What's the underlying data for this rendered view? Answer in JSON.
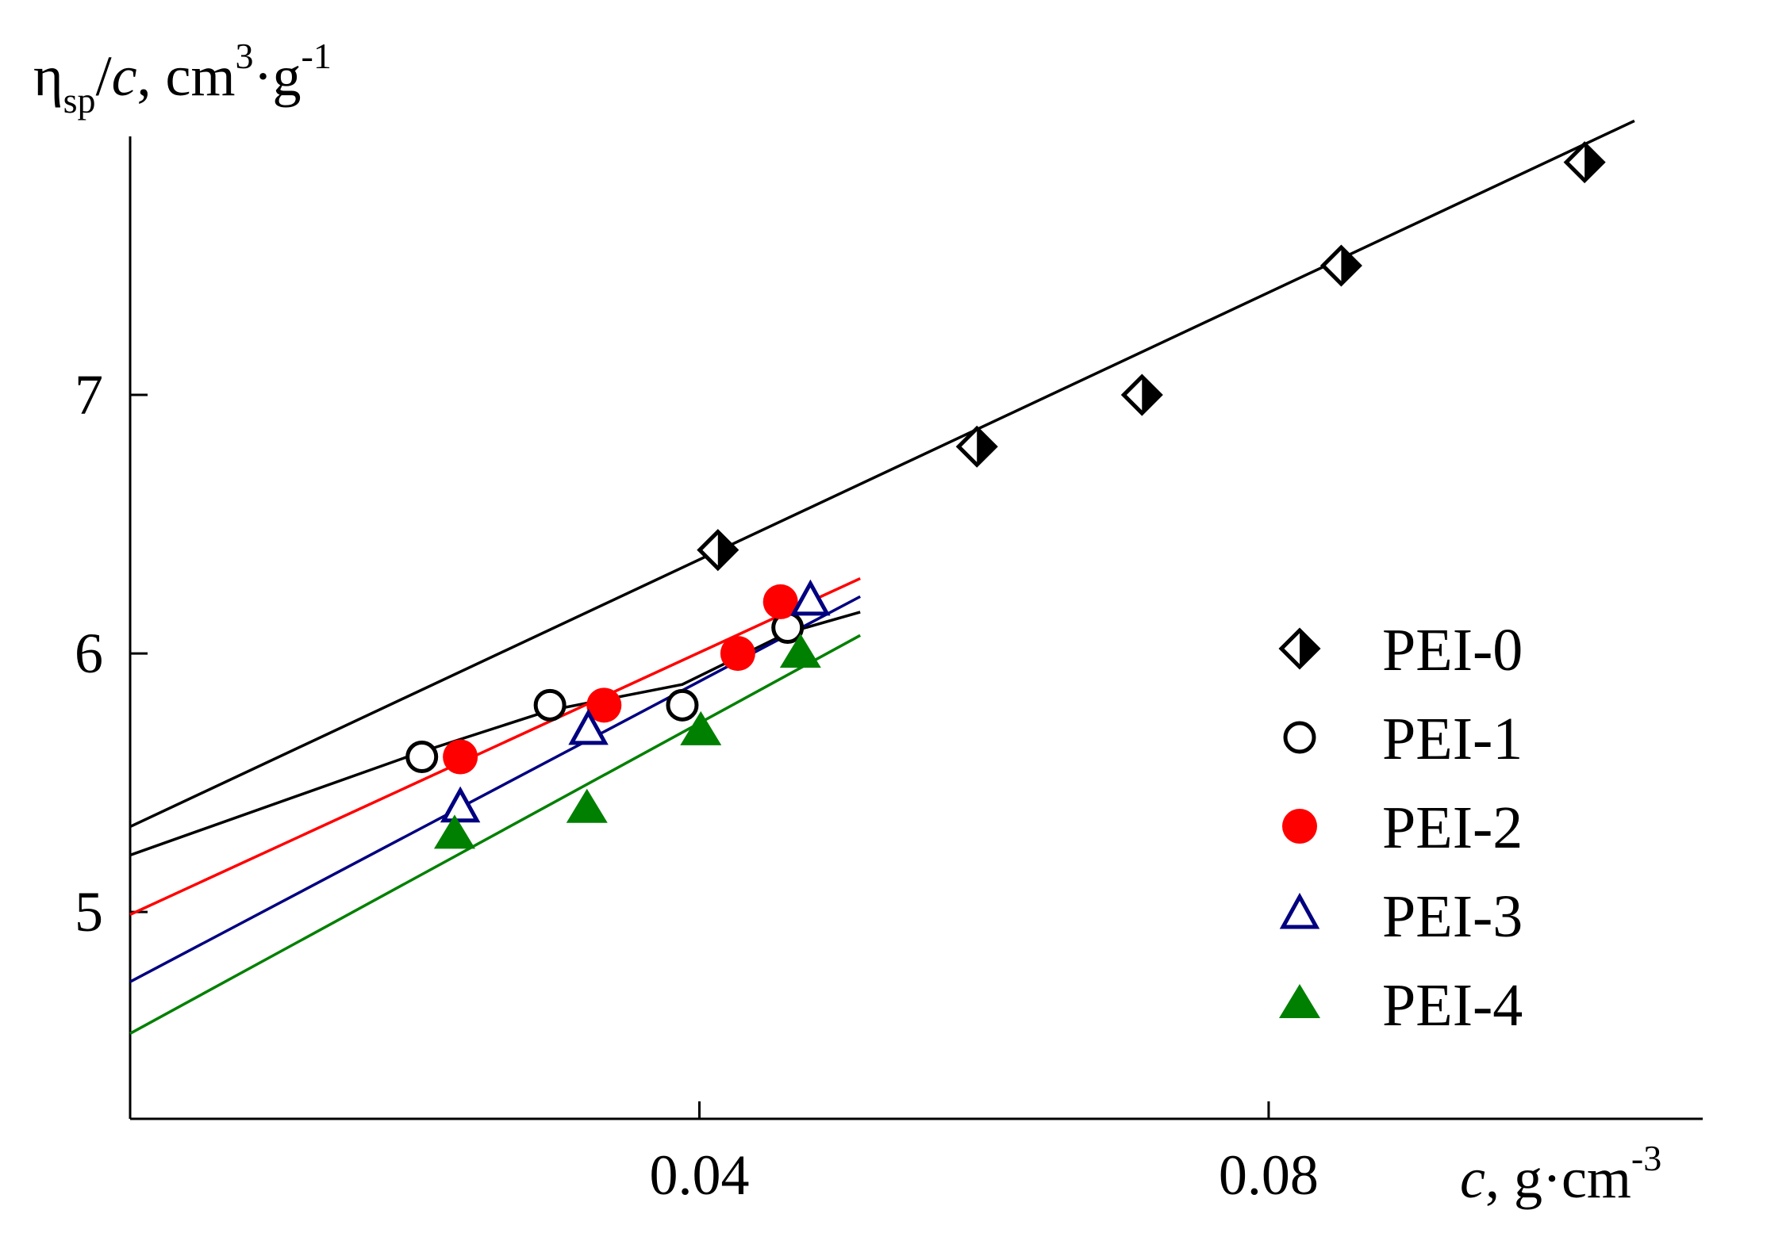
{
  "chart_data": {
    "type": "scatter",
    "title": "",
    "ylabel": {
      "main": "η",
      "sub": "sp",
      "rest": "/",
      "var": "c",
      "units": ", cm",
      "sup1": "3",
      "dot": "·g",
      "sup2": "-1"
    },
    "xlabel": {
      "var": "c",
      "units": ", g·cm",
      "sup": "-3"
    },
    "xlim": [
      0,
      0.1105
    ],
    "ylim": [
      4.2,
      8.0
    ],
    "x_ticks": [
      {
        "value": 0.04,
        "label": "0.04"
      },
      {
        "value": 0.08,
        "label": "0.08"
      }
    ],
    "y_ticks": [
      {
        "value": 5,
        "label": "5"
      },
      {
        "value": 6,
        "label": "6"
      },
      {
        "value": 7,
        "label": "7"
      }
    ],
    "legend_position": "right-center",
    "series": [
      {
        "name": "PEI-0",
        "marker": "half-diamond",
        "color": "#000000",
        "x": [
          0.0413,
          0.0595,
          0.0711,
          0.0851,
          0.1022
        ],
        "y": [
          6.4,
          6.8,
          7.0,
          7.5,
          7.9
        ],
        "fit": {
          "x": [
            0.0,
            0.1057
          ],
          "y": [
            5.33,
            8.06
          ]
        }
      },
      {
        "name": "PEI-1",
        "marker": "open-circle",
        "color": "#000000",
        "x": [
          0.0205,
          0.0295,
          0.0388,
          0.0462
        ],
        "y": [
          5.6,
          5.8,
          5.8,
          6.1
        ],
        "fit": {
          "x": [
            0.0,
            0.0205,
            0.0295,
            0.0388,
            0.0462,
            0.0513
          ],
          "y": [
            5.22,
            5.62,
            5.78,
            5.88,
            6.08,
            6.16
          ]
        }
      },
      {
        "name": "PEI-2",
        "marker": "filled-circle",
        "color": "#ff0000",
        "x": [
          0.0232,
          0.0333,
          0.0427,
          0.0457
        ],
        "y": [
          5.6,
          5.8,
          6.0,
          6.2
        ],
        "fit": {
          "x": [
            0.0,
            0.0513
          ],
          "y": [
            4.99,
            6.29
          ]
        }
      },
      {
        "name": "PEI-3",
        "marker": "open-triangle",
        "color": "#000080",
        "x": [
          0.0232,
          0.0322,
          0.0478
        ],
        "y": [
          5.4,
          5.7,
          6.2
        ],
        "fit": {
          "x": [
            0.0,
            0.0513
          ],
          "y": [
            4.73,
            6.22
          ]
        }
      },
      {
        "name": "PEI-4",
        "marker": "filled-triangle",
        "color": "#008000",
        "x": [
          0.0228,
          0.0321,
          0.0401,
          0.0471
        ],
        "y": [
          5.3,
          5.4,
          5.7,
          6.0
        ],
        "fit": {
          "x": [
            0.0,
            0.0513
          ],
          "y": [
            4.53,
            6.07
          ]
        }
      }
    ]
  }
}
